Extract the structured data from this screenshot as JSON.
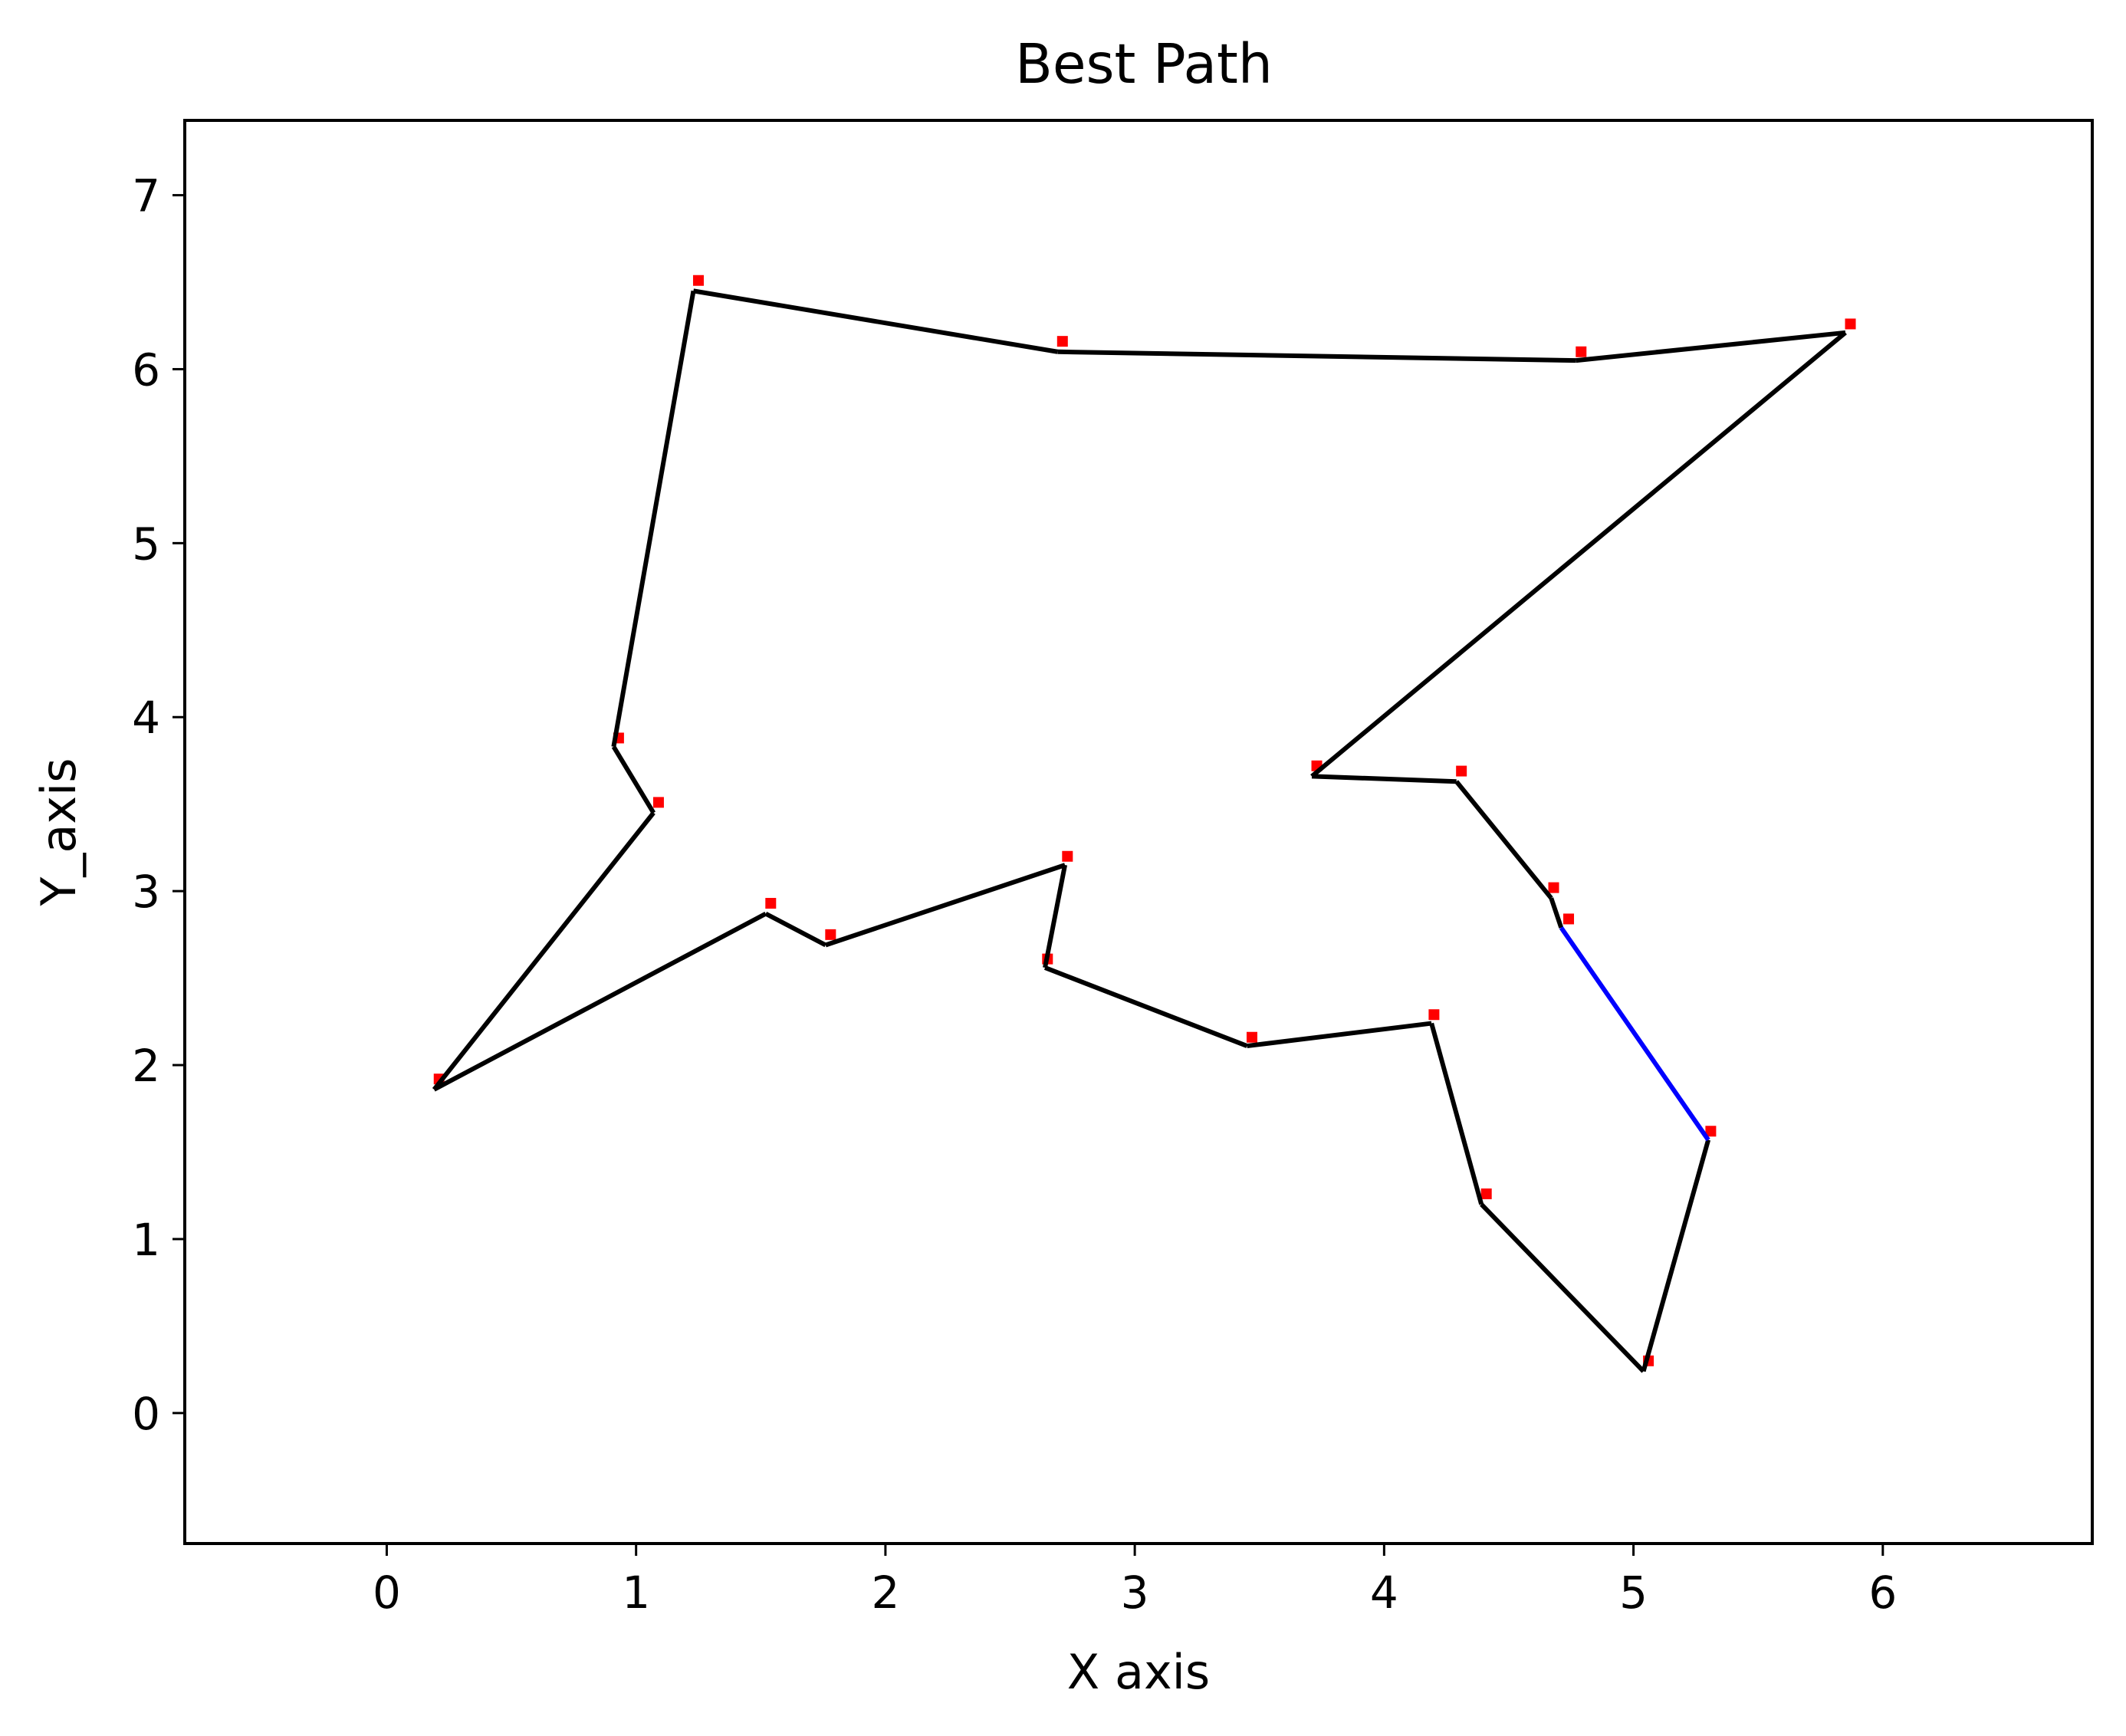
{
  "chart_data": {
    "type": "line",
    "title": "Best Path",
    "xlabel": "X axis",
    "ylabel": "Y_axis",
    "xlim": [
      -0.81,
      6.84
    ],
    "ylim": [
      -0.75,
      7.43
    ],
    "xticks": [
      0,
      1,
      2,
      3,
      4,
      5,
      6
    ],
    "yticks": [
      0,
      1,
      2,
      3,
      4,
      5,
      6,
      7
    ],
    "grid": false,
    "legend": "none",
    "colors": {
      "path": "#000000",
      "closing_segment": "#0000ff",
      "city_markers": "#ff0000"
    },
    "series": [
      {
        "type": "scatter",
        "points": [
          [
            5.31,
            1.62
          ],
          [
            5.06,
            0.3
          ],
          [
            4.41,
            1.26
          ],
          [
            4.2,
            2.29
          ],
          [
            3.47,
            2.16
          ],
          [
            2.65,
            2.61
          ],
          [
            2.73,
            3.2
          ],
          [
            1.78,
            2.75
          ],
          [
            1.54,
            2.93
          ],
          [
            0.21,
            1.92
          ],
          [
            1.09,
            3.51
          ],
          [
            0.93,
            3.88
          ],
          [
            1.25,
            6.51
          ],
          [
            2.71,
            6.16
          ],
          [
            4.79,
            6.1
          ],
          [
            5.87,
            6.26
          ],
          [
            3.73,
            3.72
          ],
          [
            4.31,
            3.69
          ],
          [
            4.68,
            3.02
          ],
          [
            4.74,
            2.84
          ]
        ]
      },
      {
        "type": "line",
        "points": [
          [
            5.3,
            1.57
          ],
          [
            5.04,
            0.24
          ],
          [
            4.39,
            1.2
          ],
          [
            4.19,
            2.24
          ],
          [
            3.45,
            2.11
          ],
          [
            2.64,
            2.56
          ],
          [
            2.72,
            3.15
          ],
          [
            1.76,
            2.69
          ],
          [
            1.52,
            2.87
          ],
          [
            0.19,
            1.86
          ],
          [
            1.07,
            3.45
          ],
          [
            0.91,
            3.83
          ],
          [
            1.23,
            6.45
          ],
          [
            2.69,
            6.1
          ],
          [
            4.77,
            6.05
          ],
          [
            5.85,
            6.21
          ],
          [
            3.71,
            3.66
          ],
          [
            4.29,
            3.63
          ],
          [
            4.67,
            2.96
          ],
          [
            4.71,
            2.79
          ]
        ]
      },
      {
        "type": "line",
        "points": [
          [
            4.71,
            2.79
          ],
          [
            5.3,
            1.57
          ]
        ]
      }
    ]
  }
}
